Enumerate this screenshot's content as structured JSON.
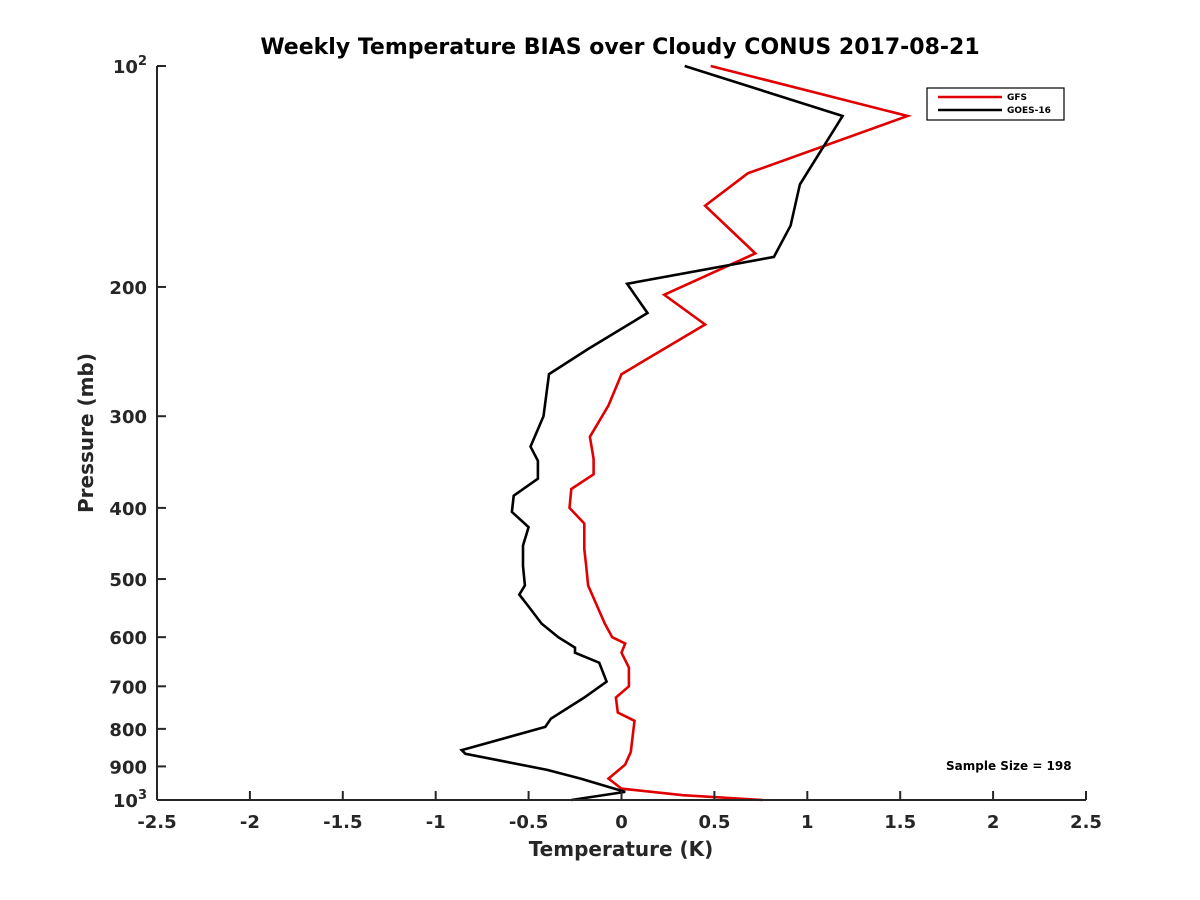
{
  "chart_data": {
    "type": "line",
    "title": "Weekly Temperature BIAS over Cloudy CONUS 2017-08-21",
    "xlabel": "Temperature (K)",
    "ylabel": "Pressure (mb)",
    "xlim": [
      -2.5,
      2.5
    ],
    "ylim": [
      100,
      1000
    ],
    "yscale": "log",
    "y_reversed": true,
    "x_ticks": [
      -2.5,
      -2,
      -1.5,
      -1,
      -0.5,
      0,
      0.5,
      1,
      1.5,
      2,
      2.5
    ],
    "x_tick_labels": [
      "-2.5",
      "-2",
      "-1.5",
      "-1",
      "-0.5",
      "0",
      "0.5",
      "1",
      "1.5",
      "2",
      "2.5"
    ],
    "y_ticks": [
      100,
      200,
      300,
      400,
      500,
      600,
      700,
      800,
      900,
      1000
    ],
    "y_tick_labels": [
      {
        "base": "10",
        "exp": "2"
      },
      {
        "base": "200",
        "exp": ""
      },
      {
        "base": "300",
        "exp": ""
      },
      {
        "base": "400",
        "exp": ""
      },
      {
        "base": "500",
        "exp": ""
      },
      {
        "base": "600",
        "exp": ""
      },
      {
        "base": "700",
        "exp": ""
      },
      {
        "base": "800",
        "exp": ""
      },
      {
        "base": "900",
        "exp": ""
      },
      {
        "base": "10",
        "exp": "3"
      }
    ],
    "grid": false,
    "legend_position": "top-right",
    "annotation": "Sample Size = 198",
    "series": [
      {
        "name": "GFS",
        "color": "#e00000",
        "points": [
          [
            0.48,
            100
          ],
          [
            1.54,
            117
          ],
          [
            0.68,
            140
          ],
          [
            0.45,
            155
          ],
          [
            0.72,
            180
          ],
          [
            0.23,
            205
          ],
          [
            0.45,
            225
          ],
          [
            0.0,
            263
          ],
          [
            -0.07,
            290
          ],
          [
            -0.17,
            320
          ],
          [
            -0.15,
            343
          ],
          [
            -0.15,
            360
          ],
          [
            -0.27,
            377
          ],
          [
            -0.28,
            400
          ],
          [
            -0.2,
            420
          ],
          [
            -0.2,
            455
          ],
          [
            -0.19,
            480
          ],
          [
            -0.18,
            510
          ],
          [
            -0.13,
            545
          ],
          [
            -0.09,
            575
          ],
          [
            -0.05,
            600
          ],
          [
            0.02,
            612
          ],
          [
            0.0,
            630
          ],
          [
            0.04,
            660
          ],
          [
            0.04,
            700
          ],
          [
            -0.03,
            725
          ],
          [
            -0.02,
            760
          ],
          [
            0.07,
            780
          ],
          [
            0.06,
            820
          ],
          [
            0.05,
            860
          ],
          [
            0.02,
            895
          ],
          [
            -0.07,
            935
          ],
          [
            0.0,
            965
          ],
          [
            0.33,
            985
          ],
          [
            0.76,
            1000
          ]
        ]
      },
      {
        "name": "GOES-16",
        "color": "#000000",
        "points": [
          [
            0.34,
            100
          ],
          [
            1.19,
            117
          ],
          [
            0.96,
            145
          ],
          [
            0.91,
            165
          ],
          [
            0.82,
            182
          ],
          [
            0.03,
            198
          ],
          [
            0.14,
            217
          ],
          [
            -0.18,
            243
          ],
          [
            -0.39,
            263
          ],
          [
            -0.42,
            300
          ],
          [
            -0.49,
            330
          ],
          [
            -0.45,
            345
          ],
          [
            -0.45,
            365
          ],
          [
            -0.58,
            385
          ],
          [
            -0.59,
            405
          ],
          [
            -0.5,
            425
          ],
          [
            -0.53,
            450
          ],
          [
            -0.53,
            480
          ],
          [
            -0.52,
            510
          ],
          [
            -0.55,
            525
          ],
          [
            -0.5,
            545
          ],
          [
            -0.43,
            575
          ],
          [
            -0.34,
            600
          ],
          [
            -0.25,
            620
          ],
          [
            -0.25,
            630
          ],
          [
            -0.12,
            650
          ],
          [
            -0.08,
            690
          ],
          [
            -0.2,
            725
          ],
          [
            -0.38,
            775
          ],
          [
            -0.41,
            795
          ],
          [
            -0.86,
            855
          ],
          [
            -0.84,
            865
          ],
          [
            -0.4,
            910
          ],
          [
            -0.22,
            935
          ],
          [
            0.02,
            975
          ],
          [
            -0.27,
            1000
          ]
        ]
      }
    ]
  }
}
